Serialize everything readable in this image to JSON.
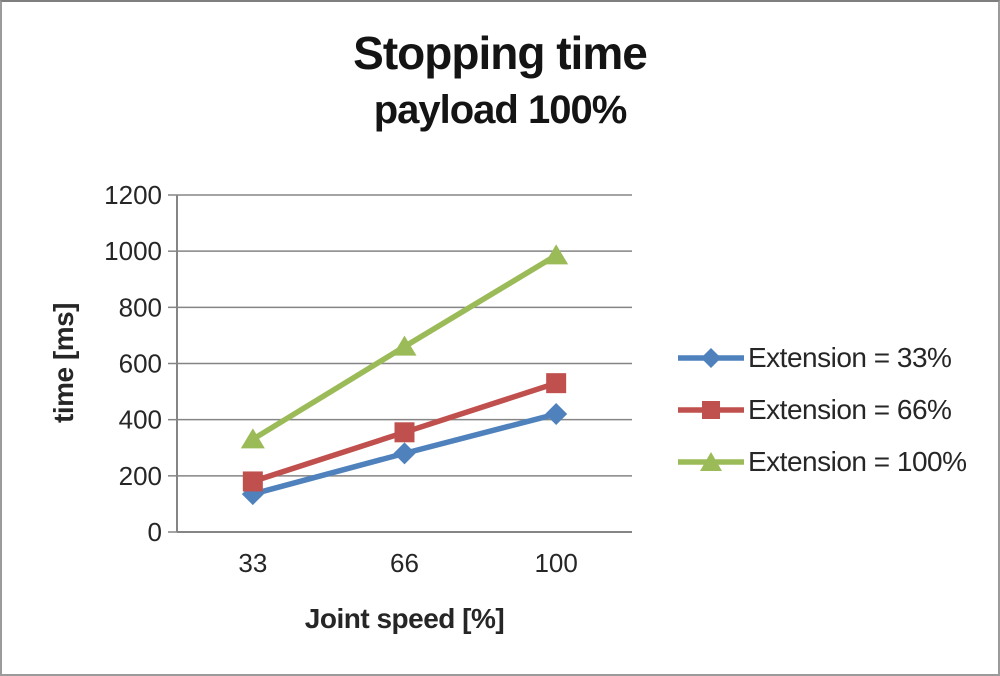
{
  "chart_data": {
    "type": "line",
    "title": "Stopping time",
    "subtitle": "payload 100%",
    "xlabel": "Joint speed [%]",
    "ylabel": "time [ms]",
    "categories": [
      "33",
      "66",
      "100"
    ],
    "series": [
      {
        "name": "Extension = 33%",
        "marker": "diamond",
        "color": "#4F81BD",
        "values": [
          135,
          280,
          420
        ]
      },
      {
        "name": "Extension = 66%",
        "marker": "square",
        "color": "#C0504D",
        "values": [
          180,
          355,
          530
        ]
      },
      {
        "name": "Extension = 100%",
        "marker": "triangle",
        "color": "#9BBB59",
        "values": [
          330,
          660,
          985
        ]
      }
    ],
    "ylim": [
      0,
      1200
    ],
    "yticks": [
      0,
      200,
      400,
      600,
      800,
      1000,
      1200
    ],
    "grid": true,
    "legend_position": "right",
    "gridline_color": "#858585",
    "axis_color": "#858585",
    "text_color": "#262626",
    "frame_border_color": "#9b9b9b"
  }
}
